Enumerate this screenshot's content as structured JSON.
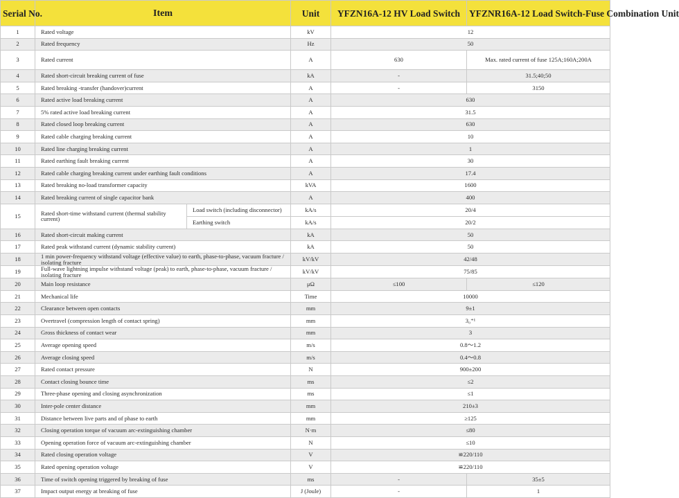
{
  "header": {
    "serial": "Serial No.",
    "item": "Item",
    "unit": "Unit",
    "col_a": "YFZN16A-12 HV Load Switch",
    "col_b": "YFZNR16A-12 Load Switch-Fuse Combination Unit"
  },
  "rows": [
    {
      "no": "1",
      "item": "Rated voltage",
      "unit": "kV",
      "span": "12"
    },
    {
      "no": "2",
      "item": "Rated frequency",
      "unit": "Hz",
      "span": "50"
    },
    {
      "no": "3",
      "item": "Rated current",
      "unit": "A",
      "a": "630",
      "b": "Max. rated current of fuse 125A;160A;200A"
    },
    {
      "no": "4",
      "item": "Rated short-circuit breaking current of fuse",
      "unit": "kA",
      "a": "-",
      "b": "31.5;40;50"
    },
    {
      "no": "5",
      "item": "Rated breaking -transfer (handover)current",
      "unit": "A",
      "a": "-",
      "b": "3150"
    },
    {
      "no": "6",
      "item": "Rated active load breaking current",
      "unit": "A",
      "span": "630"
    },
    {
      "no": "7",
      "item": "5% rated active load breaking current",
      "unit": "A",
      "span": "31.5"
    },
    {
      "no": "8",
      "item": "Rated closed loop breaking current",
      "unit": "A",
      "span": "630"
    },
    {
      "no": "9",
      "item": "Rated cable charging breaking current",
      "unit": "A",
      "span": "10"
    },
    {
      "no": "10",
      "item": "Rated line charging breaking current",
      "unit": "A",
      "span": "1"
    },
    {
      "no": "11",
      "item": "Rated earthing fault breaking current",
      "unit": "A",
      "span": "30"
    },
    {
      "no": "12",
      "item": "Rated cable charging breaking current under earthing fault conditions",
      "unit": "A",
      "span": "17.4"
    },
    {
      "no": "13",
      "item": "Rated breaking no-load transformer capacity",
      "unit": "kVA",
      "span": "1600"
    },
    {
      "no": "14",
      "item": "Rated breaking current of single capacitor bank",
      "unit": "A",
      "span": "400"
    },
    {
      "no": "15",
      "item": "Rated short-time withstand current (thermal stability current)",
      "sub": [
        {
          "label": "Load switch (including disconnector)",
          "unit": "kA/s",
          "span": "20/4"
        },
        {
          "label": "Earthing switch",
          "unit": "kA/s",
          "span": "20/2"
        }
      ]
    },
    {
      "no": "16",
      "item": "Rated short-circuit making current",
      "unit": "kA",
      "span": "50"
    },
    {
      "no": "17",
      "item": "Rated peak withstand current (dynamic stability current)",
      "unit": "kA",
      "span": "50"
    },
    {
      "no": "18",
      "item": "1 min power-frequency withstand voltage (effective value) to earth, phase-to-phase, vacuum fracture / isolating fracture",
      "unit": "kV/kV",
      "span": "42/48"
    },
    {
      "no": "19",
      "item": "Full-wave lightning impulse withstand voltage (peak) to earth, phase-to-phase, vacuum fracture / isolating fracture",
      "unit": "kV/kV",
      "span": "75/85"
    },
    {
      "no": "20",
      "item": "Main loop resistance",
      "unit": "μΩ",
      "a": "≤100",
      "b": "≤120"
    },
    {
      "no": "21",
      "item": "Mechanical life",
      "unit": "Time",
      "span": "10000"
    },
    {
      "no": "22",
      "item": "Clearance between open contacts",
      "unit": "mm",
      "span": "9±1"
    },
    {
      "no": "23",
      "item": "Overtravel (compression length of contact spring)",
      "unit": "mm",
      "span": "3₀⁺¹"
    },
    {
      "no": "24",
      "item": "Gross thickness of contact wear",
      "unit": "mm",
      "span": "3"
    },
    {
      "no": "25",
      "item": "Average opening speed",
      "unit": "m/s",
      "span": "0.8～1.2"
    },
    {
      "no": "26",
      "item": "Average closing speed",
      "unit": "m/s",
      "span": "0.4～0.8"
    },
    {
      "no": "27",
      "item": "Rated contact pressure",
      "unit": "N",
      "span": "900±200"
    },
    {
      "no": "28",
      "item": "Contact closing bounce time",
      "unit": "ms",
      "span": "≤2"
    },
    {
      "no": "29",
      "item": "Three-phase opening and closing asynchronization",
      "unit": "ms",
      "span": "≤1"
    },
    {
      "no": "30",
      "item": "Inter-pole center distance",
      "unit": "mm",
      "span": "210±3"
    },
    {
      "no": "31",
      "item": "Distance between live parts and of phase to earth",
      "unit": "mm",
      "span": "≥125"
    },
    {
      "no": "32",
      "item": "Closing operation torque of vacuum  arc-extinguishing chamber",
      "unit": "N·m",
      "span": "≤80"
    },
    {
      "no": "33",
      "item": "Opening operation force of vacuum  arc-extinguishing chamber",
      "unit": "N",
      "span": "≤10"
    },
    {
      "no": "34",
      "item": "Rated closing operation voltage",
      "unit": "V",
      "span": "≌220/110"
    },
    {
      "no": "35",
      "item": "Rated opening operation voltage",
      "unit": "V",
      "span": "≌220/110"
    },
    {
      "no": "36",
      "item": "Time of switch opening triggered by breaking of fuse",
      "unit": "ms",
      "a": "-",
      "b": "35±5"
    },
    {
      "no": "37",
      "item": "Impact output energy at breaking of fuse",
      "unit": "J (Joule)",
      "a": "-",
      "b": "1"
    }
  ]
}
